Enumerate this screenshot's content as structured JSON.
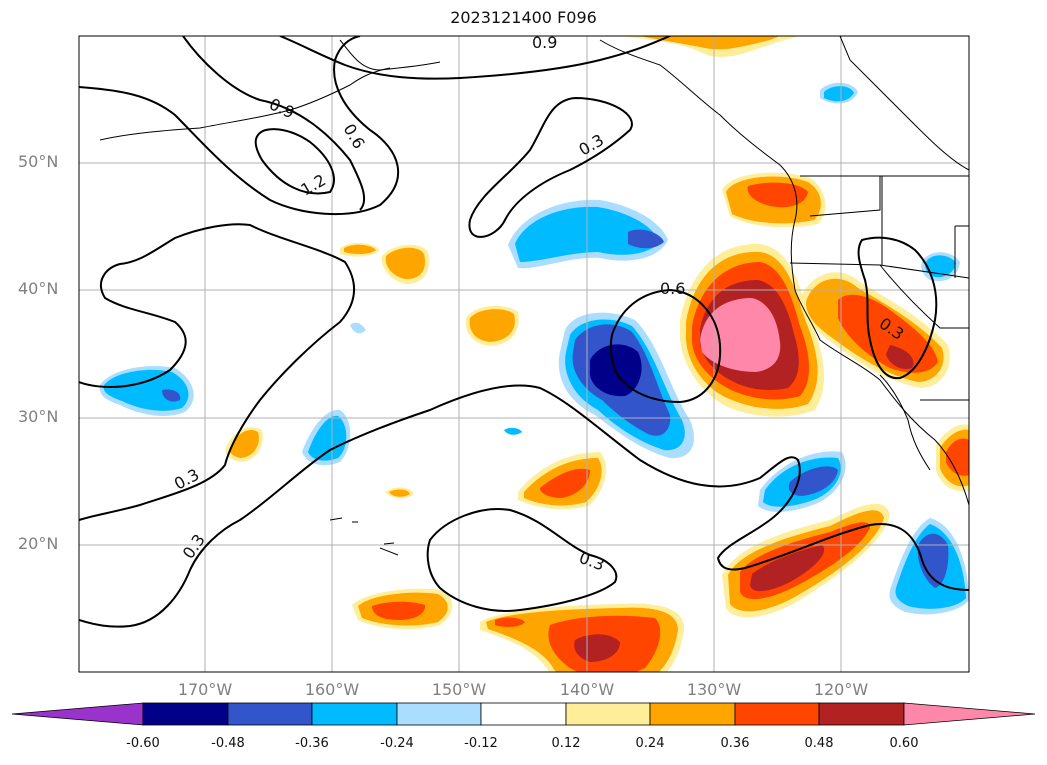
{
  "title": "2023121400 F096",
  "map": {
    "projection": "equirectangular",
    "domain_labels": {
      "lat_ticks": [
        "50°N",
        "40°N",
        "30°N",
        "20°N"
      ],
      "lon_ticks": [
        "170°W",
        "160°W",
        "150°W",
        "140°W",
        "130°W",
        "120°W"
      ]
    },
    "contour_labels": [
      "0.9",
      "0.9",
      "0.6",
      "1.2",
      "0.3",
      "0.6",
      "0.3",
      "0.3",
      "0.3",
      "0.3"
    ],
    "contour_color": "#000000",
    "gridlines": true
  },
  "colorbar": {
    "extend": "both",
    "colors": [
      "#9933cc",
      "#000088",
      "#3355cc",
      "#00bbff",
      "#aaddff",
      "#ffffff",
      "#ffee99",
      "#ffa500",
      "#ff4500",
      "#b22222",
      "#ff88aa"
    ],
    "ticks": [
      "-0.60",
      "-0.48",
      "-0.36",
      "-0.24",
      "-0.12",
      "0.12",
      "0.24",
      "0.36",
      "0.48",
      "0.60"
    ]
  }
}
